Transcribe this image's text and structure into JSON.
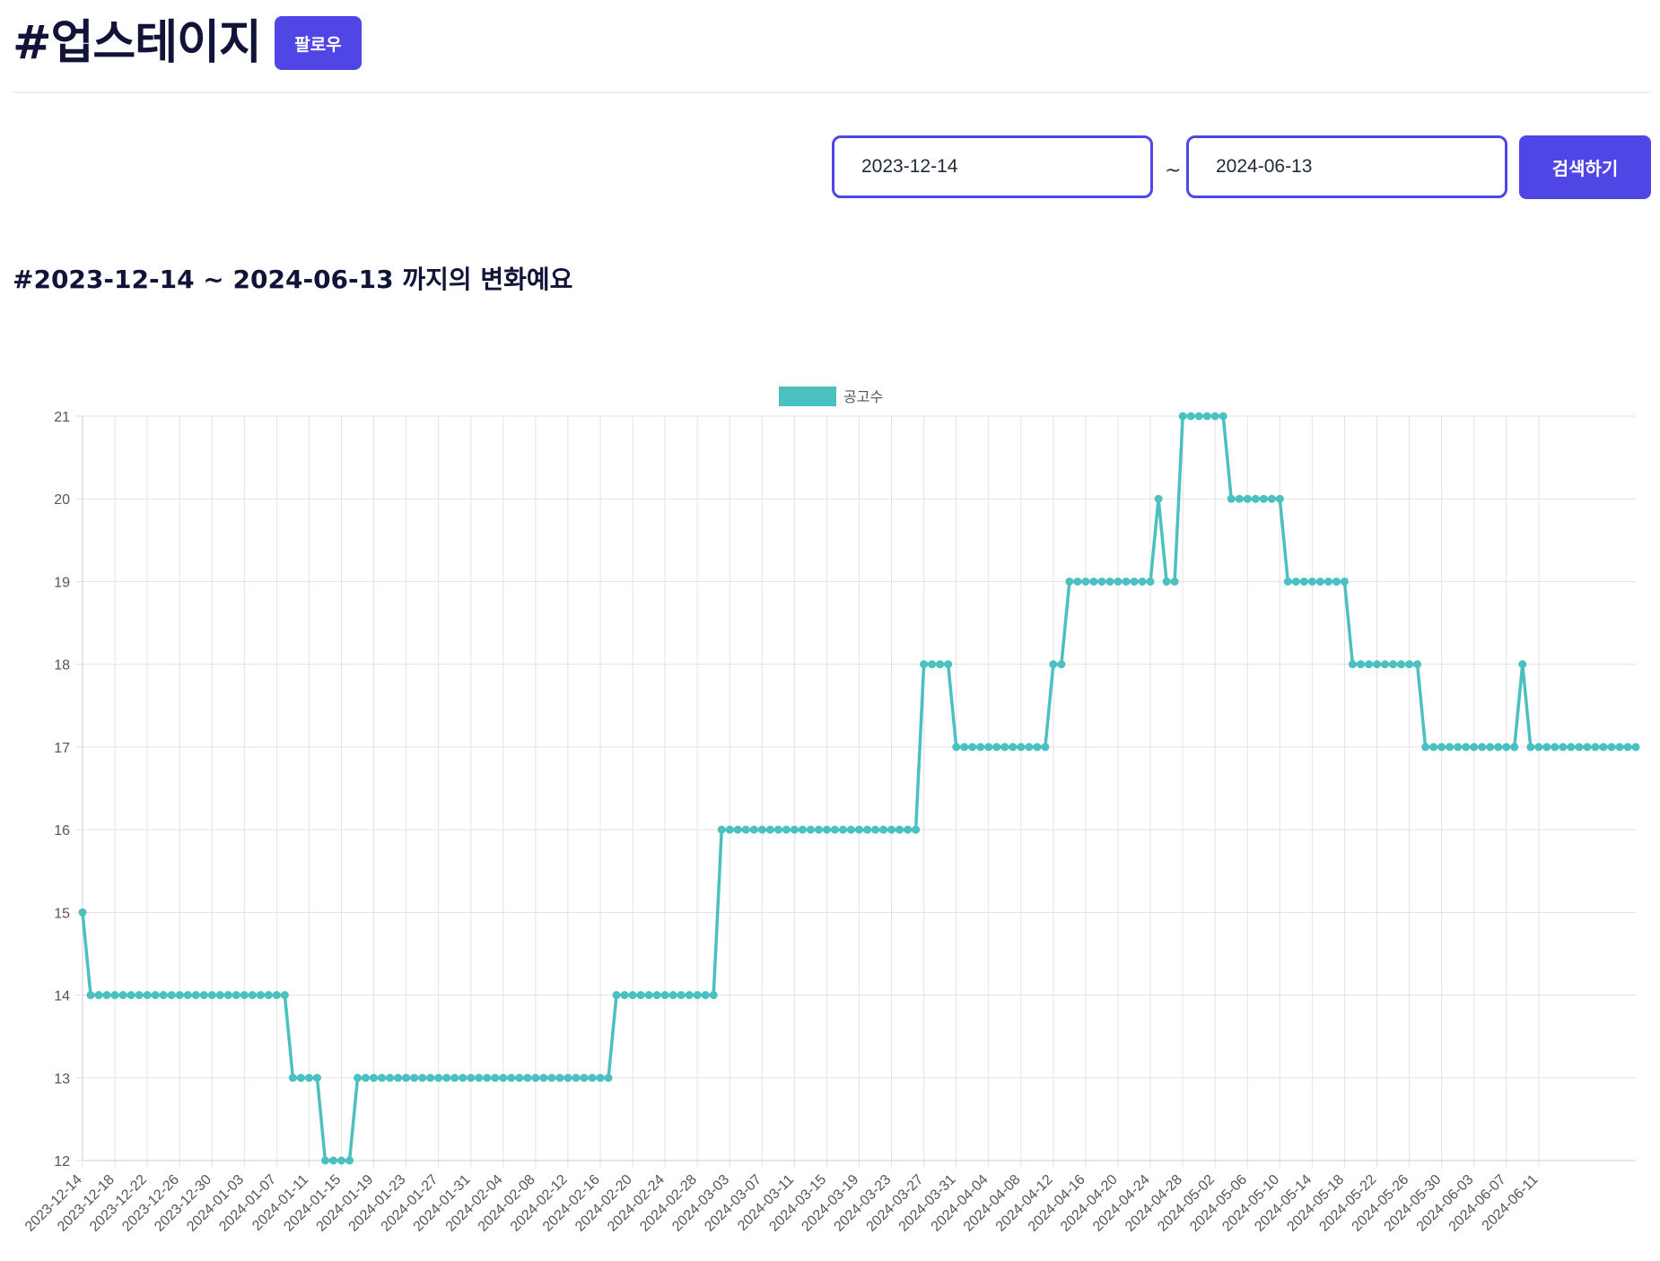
{
  "header": {
    "title": "#업스테이지",
    "follow_label": "팔로우"
  },
  "search": {
    "start_date": "2023-12-14",
    "separator": "~",
    "end_date": "2024-06-13",
    "button_label": "검색하기"
  },
  "subtitle": "#2023-12-14 ~ 2024-06-13 까지의 변화예요",
  "colors": {
    "accent": "#4f46e5",
    "series": "#4bc0c0",
    "title": "#111339"
  },
  "chart_data": {
    "type": "line",
    "legend": [
      "공고수"
    ],
    "legend_position": "top-center",
    "grid": true,
    "ylim": [
      12,
      21
    ],
    "yticks": [
      12,
      13,
      14,
      15,
      16,
      17,
      18,
      19,
      20,
      21
    ],
    "x_start": "2023-12-14",
    "x_end": "2024-06-13",
    "xtick_labels": [
      "2023-12-14",
      "2023-12-18",
      "2023-12-22",
      "2023-12-26",
      "2023-12-30",
      "2024-01-03",
      "2024-01-07",
      "2024-01-11",
      "2024-01-15",
      "2024-01-19",
      "2024-01-23",
      "2024-01-27",
      "2024-01-31",
      "2024-02-04",
      "2024-02-08",
      "2024-02-12",
      "2024-02-16",
      "2024-02-20",
      "2024-02-24",
      "2024-02-28",
      "2024-03-03",
      "2024-03-07",
      "2024-03-11",
      "2024-03-15",
      "2024-03-19",
      "2024-03-23",
      "2024-03-27",
      "2024-03-31",
      "2024-04-04",
      "2024-04-08",
      "2024-04-12",
      "2024-04-16",
      "2024-04-20",
      "2024-04-24",
      "2024-04-28",
      "2024-05-02",
      "2024-05-06",
      "2024-05-10",
      "2024-05-14",
      "2024-05-18",
      "2024-05-22",
      "2024-05-26",
      "2024-05-30",
      "2024-06-03",
      "2024-06-07",
      "2024-06-11"
    ],
    "series": [
      {
        "name": "공고수",
        "values": [
          15,
          14,
          14,
          14,
          14,
          14,
          14,
          14,
          14,
          14,
          14,
          14,
          14,
          14,
          14,
          14,
          14,
          14,
          14,
          14,
          14,
          14,
          14,
          14,
          14,
          14,
          13,
          13,
          13,
          13,
          12,
          12,
          12,
          12,
          13,
          13,
          13,
          13,
          13,
          13,
          13,
          13,
          13,
          13,
          13,
          13,
          13,
          13,
          13,
          13,
          13,
          13,
          13,
          13,
          13,
          13,
          13,
          13,
          13,
          13,
          13,
          13,
          13,
          13,
          13,
          13,
          14,
          14,
          14,
          14,
          14,
          14,
          14,
          14,
          14,
          14,
          14,
          14,
          14,
          16,
          16,
          16,
          16,
          16,
          16,
          16,
          16,
          16,
          16,
          16,
          16,
          16,
          16,
          16,
          16,
          16,
          16,
          16,
          16,
          16,
          16,
          16,
          16,
          16,
          18,
          18,
          18,
          18,
          17,
          17,
          17,
          17,
          17,
          17,
          17,
          17,
          17,
          17,
          17,
          17,
          18,
          18,
          19,
          19,
          19,
          19,
          19,
          19,
          19,
          19,
          19,
          19,
          19,
          20,
          19,
          19,
          21,
          21,
          21,
          21,
          21,
          21,
          20,
          20,
          20,
          20,
          20,
          20,
          20,
          19,
          19,
          19,
          19,
          19,
          19,
          19,
          19,
          18,
          18,
          18,
          18,
          18,
          18,
          18,
          18,
          18,
          17,
          17,
          17,
          17,
          17,
          17,
          17,
          17,
          17,
          17,
          17,
          17,
          18,
          17,
          17,
          17,
          17,
          17,
          17,
          17,
          17,
          17,
          17,
          17,
          17,
          17,
          17
        ]
      }
    ]
  }
}
